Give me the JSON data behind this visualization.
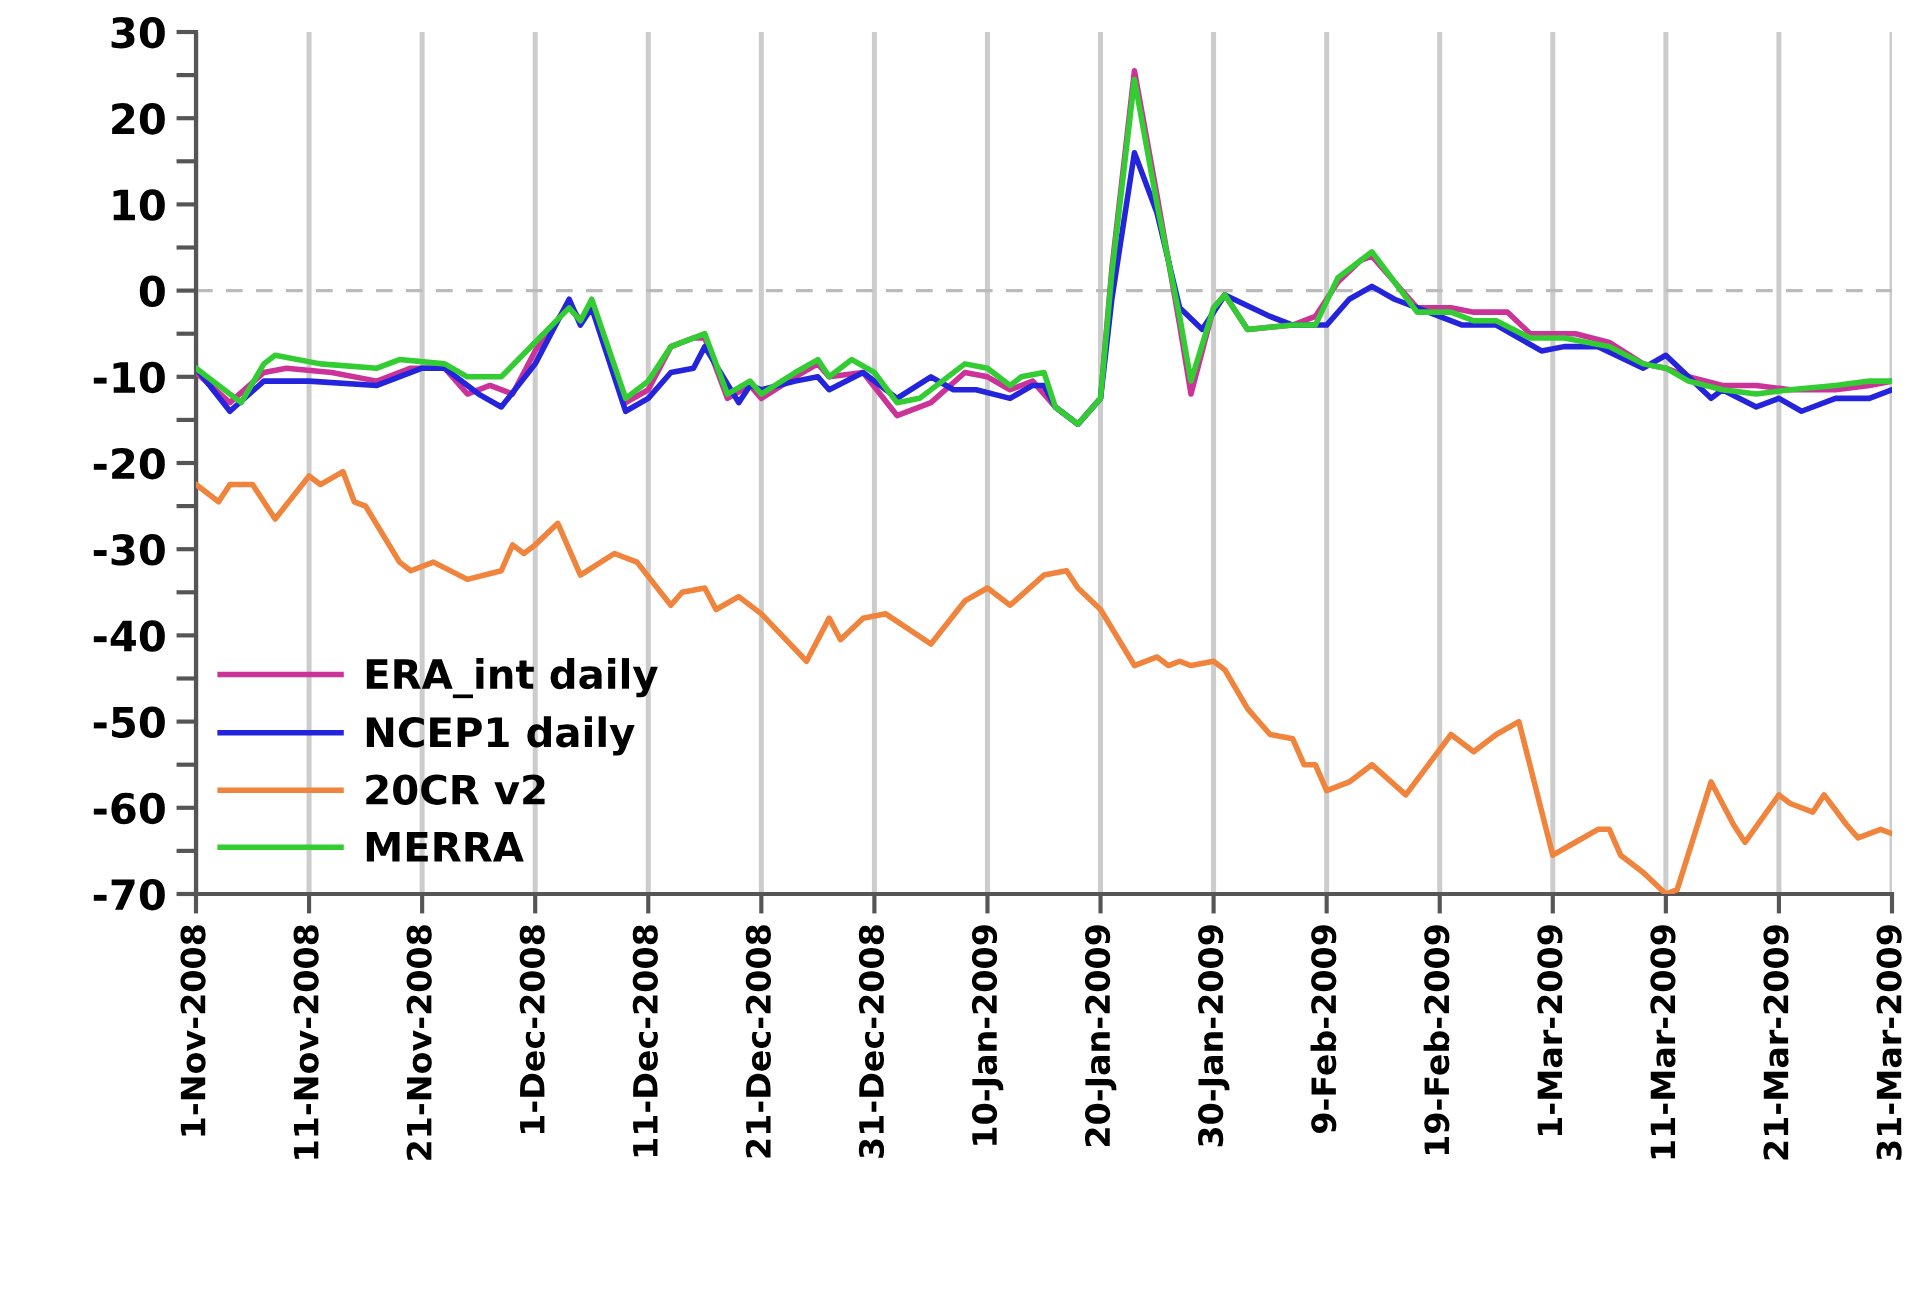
{
  "chart_data": {
    "type": "line",
    "xlim": [
      "2008-11-01",
      "2009-03-31"
    ],
    "xticks": [
      {
        "value": "2008-11-01",
        "label": "1-Nov-2008"
      },
      {
        "value": "2008-11-11",
        "label": "11-Nov-2008"
      },
      {
        "value": "2008-11-21",
        "label": "21-Nov-2008"
      },
      {
        "value": "2008-12-01",
        "label": "1-Dec-2008"
      },
      {
        "value": "2008-12-11",
        "label": "11-Dec-2008"
      },
      {
        "value": "2008-12-21",
        "label": "21-Dec-2008"
      },
      {
        "value": "2008-12-31",
        "label": "31-Dec-2008"
      },
      {
        "value": "2009-01-10",
        "label": "10-Jan-2009"
      },
      {
        "value": "2009-01-20",
        "label": "20-Jan-2009"
      },
      {
        "value": "2009-01-30",
        "label": "30-Jan-2009"
      },
      {
        "value": "2009-02-09",
        "label": "9-Feb-2009"
      },
      {
        "value": "2009-02-19",
        "label": "19-Feb-2009"
      },
      {
        "value": "2009-03-01",
        "label": "1-Mar-2009"
      },
      {
        "value": "2009-03-11",
        "label": "11-Mar-2009"
      },
      {
        "value": "2009-03-21",
        "label": "21-Mar-2009"
      },
      {
        "value": "2009-03-31",
        "label": "31-Mar-2009"
      }
    ],
    "ylim": [
      -70,
      30
    ],
    "yticks": [
      -70,
      {
        "value": -65,
        "label": null
      },
      -60,
      {
        "value": -55,
        "label": null
      },
      -50,
      {
        "value": -45,
        "label": null
      },
      -40,
      {
        "value": -35,
        "label": null
      },
      -30,
      {
        "value": -25,
        "label": null
      },
      -20,
      {
        "value": -15,
        "label": null
      },
      -10,
      {
        "value": -5,
        "label": null
      },
      0,
      {
        "value": 5,
        "label": null
      },
      10,
      {
        "value": 15,
        "label": null
      },
      20,
      {
        "value": 25,
        "label": null
      },
      30
    ],
    "grid": "x",
    "legend": "bottom left",
    "ref_lines": [
      {
        "axis": "y",
        "value": 0,
        "color": "#bbbbbb",
        "line_style": "dashed"
      }
    ],
    "series": [
      {
        "name": "ERA_int daily",
        "color": "#cc3399",
        "x": [
          "2008-11-01",
          "2008-11-04",
          "2008-11-07",
          "2008-11-09",
          "2008-11-13",
          "2008-11-17",
          "2008-11-20",
          "2008-11-23",
          "2008-11-25",
          "2008-11-27",
          "2008-11-29",
          "2008-12-01",
          "2008-12-04",
          "2008-12-05",
          "2008-12-06",
          "2008-12-09",
          "2008-12-11",
          "2008-12-13",
          "2008-12-15",
          "2008-12-16",
          "2008-12-18",
          "2008-12-20",
          "2008-12-21",
          "2008-12-24",
          "2008-12-26",
          "2008-12-27",
          "2008-12-30",
          "2009-01-02",
          "2009-01-05",
          "2009-01-08",
          "2009-01-10",
          "2009-01-12",
          "2009-01-14",
          "2009-01-16",
          "2009-01-18",
          "2009-01-20",
          "2009-01-21",
          "2009-01-23",
          "2009-01-25",
          "2009-01-27",
          "2009-01-28",
          "2009-01-30",
          "2009-01-31",
          "2009-02-02",
          "2009-02-06",
          "2009-02-08",
          "2009-02-10",
          "2009-02-12",
          "2009-02-13",
          "2009-02-15",
          "2009-02-17",
          "2009-02-20",
          "2009-02-22",
          "2009-02-25",
          "2009-02-27",
          "2009-03-03",
          "2009-03-06",
          "2009-03-09",
          "2009-03-11",
          "2009-03-13",
          "2009-03-16",
          "2009-03-19",
          "2009-03-22",
          "2009-03-26",
          "2009-03-29",
          "2009-03-31"
        ],
        "values": [
          -9.5,
          -13,
          -9.5,
          -9,
          -9.5,
          -10.5,
          -9,
          -9,
          -12,
          -11,
          -12,
          -7,
          -1.5,
          -3.5,
          -1.5,
          -13,
          -11.5,
          -6.5,
          -5.5,
          -5.5,
          -12.5,
          -11,
          -12.5,
          -10,
          -8.5,
          -10,
          -9.5,
          -14.5,
          -13,
          -9.5,
          -10,
          -11.5,
          -10.5,
          -13.5,
          -15.5,
          -12.5,
          2.5,
          25.5,
          11,
          -4,
          -12,
          -2,
          -0.5,
          -4.5,
          -4,
          -3,
          1,
          3.5,
          4,
          1,
          -2,
          -2,
          -2.5,
          -2.5,
          -5,
          -5,
          -6,
          -8.5,
          -9,
          -10,
          -11,
          -11,
          -11.5,
          -11.5,
          -11,
          -10.5
        ]
      },
      {
        "name": "NCEP1 daily",
        "color": "#2424dd",
        "x": [
          "2008-11-01",
          "2008-11-04",
          "2008-11-07",
          "2008-11-11",
          "2008-11-17",
          "2008-11-21",
          "2008-11-23",
          "2008-11-26",
          "2008-11-28",
          "2008-12-01",
          "2008-12-04",
          "2008-12-05",
          "2008-12-06",
          "2008-12-09",
          "2008-12-11",
          "2008-12-13",
          "2008-12-15",
          "2008-12-16",
          "2008-12-19",
          "2008-12-20",
          "2008-12-21",
          "2008-12-24",
          "2008-12-26",
          "2008-12-27",
          "2008-12-30",
          "2009-01-02",
          "2009-01-05",
          "2009-01-07",
          "2009-01-09",
          "2009-01-12",
          "2009-01-14",
          "2009-01-15",
          "2009-01-16",
          "2009-01-18",
          "2009-01-20",
          "2009-01-21",
          "2009-01-23",
          "2009-01-25",
          "2009-01-27",
          "2009-01-29",
          "2009-01-31",
          "2009-02-04",
          "2009-02-06",
          "2009-02-09",
          "2009-02-11",
          "2009-02-13",
          "2009-02-15",
          "2009-02-18",
          "2009-02-21",
          "2009-02-24",
          "2009-02-28",
          "2009-03-02",
          "2009-03-05",
          "2009-03-09",
          "2009-03-11",
          "2009-03-13",
          "2009-03-15",
          "2009-03-16",
          "2009-03-19",
          "2009-03-21",
          "2009-03-23",
          "2009-03-26",
          "2009-03-29",
          "2009-03-31"
        ],
        "values": [
          -9,
          -14,
          -10.5,
          -10.5,
          -11,
          -9,
          -9,
          -12,
          -13.5,
          -8.5,
          -1,
          -4,
          -2,
          -14,
          -12.5,
          -9.5,
          -9,
          -6.5,
          -13,
          -11,
          -11.5,
          -10.5,
          -10,
          -11.5,
          -9.5,
          -12.5,
          -10,
          -11.5,
          -11.5,
          -12.5,
          -11,
          -11,
          -13.5,
          -15.5,
          -12.5,
          -1,
          16,
          9,
          -2,
          -4.5,
          -0.5,
          -3,
          -4,
          -4,
          -1,
          0.5,
          -1,
          -2.5,
          -4,
          -4,
          -7,
          -6.5,
          -6.5,
          -9,
          -7.5,
          -10,
          -12.5,
          -11.5,
          -13.5,
          -12.5,
          -14,
          -12.5,
          -12.5,
          -11.5
        ]
      },
      {
        "name": "20CR v2",
        "color": "#f0843c",
        "x": [
          "2008-11-01",
          "2008-11-03",
          "2008-11-04",
          "2008-11-06",
          "2008-11-08",
          "2008-11-11",
          "2008-11-12",
          "2008-11-14",
          "2008-11-15",
          "2008-11-16",
          "2008-11-19",
          "2008-11-20",
          "2008-11-22",
          "2008-11-25",
          "2008-11-28",
          "2008-11-29",
          "2008-11-30",
          "2008-12-01",
          "2008-12-03",
          "2008-12-05",
          "2008-12-08",
          "2008-12-10",
          "2008-12-13",
          "2008-12-14",
          "2008-12-16",
          "2008-12-17",
          "2008-12-19",
          "2008-12-21",
          "2008-12-25",
          "2008-12-27",
          "2008-12-28",
          "2008-12-30",
          "2009-01-01",
          "2009-01-05",
          "2009-01-08",
          "2009-01-10",
          "2009-01-12",
          "2009-01-15",
          "2009-01-17",
          "2009-01-18",
          "2009-01-20",
          "2009-01-23",
          "2009-01-25",
          "2009-01-26",
          "2009-01-27",
          "2009-01-28",
          "2009-01-30",
          "2009-01-31",
          "2009-02-02",
          "2009-02-04",
          "2009-02-06",
          "2009-02-07",
          "2009-02-08",
          "2009-02-09",
          "2009-02-11",
          "2009-02-13",
          "2009-02-16",
          "2009-02-20",
          "2009-02-22",
          "2009-02-24",
          "2009-02-26",
          "2009-03-01",
          "2009-03-03",
          "2009-03-05",
          "2009-03-06",
          "2009-03-07",
          "2009-03-09",
          "2009-03-11",
          "2009-03-12",
          "2009-03-15",
          "2009-03-17",
          "2009-03-18",
          "2009-03-21",
          "2009-03-22",
          "2009-03-24",
          "2009-03-25",
          "2009-03-27",
          "2009-03-28",
          "2009-03-30",
          "2009-03-31"
        ],
        "values": [
          -22.5,
          -24.5,
          -22.5,
          -22.5,
          -26.5,
          -21.5,
          -22.5,
          -21,
          -24.5,
          -25,
          -31.5,
          -32.5,
          -31.5,
          -33.5,
          -32.5,
          -29.5,
          -30.5,
          -29.5,
          -27,
          -33,
          -30.5,
          -31.5,
          -36.5,
          -35,
          -34.5,
          -37,
          -35.5,
          -37.5,
          -43,
          -38,
          -40.5,
          -38,
          -37.5,
          -41,
          -36,
          -34.5,
          -36.5,
          -33,
          -32.5,
          -34.5,
          -37,
          -43.5,
          -42.5,
          -43.5,
          -43,
          -43.5,
          -43,
          -44,
          -48.5,
          -51.5,
          -52,
          -55,
          -55,
          -58,
          -57,
          -55,
          -58.5,
          -51.5,
          -53.5,
          -51.5,
          -50,
          -65.5,
          -64,
          -62.5,
          -62.5,
          -65.5,
          -67.5,
          -70,
          -69.5,
          -57,
          -62,
          -64,
          -58.5,
          -59.5,
          -60.5,
          -58.5,
          -62,
          -63.5,
          -62.5,
          -63
        ]
      },
      {
        "name": "MERRA",
        "color": "#33cc33",
        "x": [
          "2008-11-01",
          "2008-11-05",
          "2008-11-07",
          "2008-11-08",
          "2008-11-12",
          "2008-11-17",
          "2008-11-19",
          "2008-11-23",
          "2008-11-25",
          "2008-11-28",
          "2008-12-01",
          "2008-12-04",
          "2008-12-05",
          "2008-12-06",
          "2008-12-09",
          "2008-12-11",
          "2008-12-13",
          "2008-12-16",
          "2008-12-18",
          "2008-12-20",
          "2008-12-21",
          "2008-12-24",
          "2008-12-26",
          "2008-12-27",
          "2008-12-29",
          "2008-12-31",
          "2009-01-02",
          "2009-01-04",
          "2009-01-06",
          "2009-01-08",
          "2009-01-10",
          "2009-01-12",
          "2009-01-13",
          "2009-01-15",
          "2009-01-16",
          "2009-01-18",
          "2009-01-20",
          "2009-01-21",
          "2009-01-23",
          "2009-01-25",
          "2009-01-27",
          "2009-01-28",
          "2009-01-30",
          "2009-01-31",
          "2009-02-02",
          "2009-02-06",
          "2009-02-08",
          "2009-02-10",
          "2009-02-12",
          "2009-02-13",
          "2009-02-15",
          "2009-02-17",
          "2009-02-20",
          "2009-02-22",
          "2009-02-24",
          "2009-02-27",
          "2009-03-02",
          "2009-03-06",
          "2009-03-09",
          "2009-03-11",
          "2009-03-13",
          "2009-03-16",
          "2009-03-19",
          "2009-03-22",
          "2009-03-26",
          "2009-03-29",
          "2009-03-31"
        ],
        "values": [
          -9,
          -13,
          -8.5,
          -7.5,
          -8.5,
          -9,
          -8,
          -8.5,
          -10,
          -10,
          -6,
          -2,
          -3.5,
          -1,
          -12.5,
          -10.5,
          -6.5,
          -5,
          -12,
          -10.5,
          -12,
          -9.5,
          -8,
          -10,
          -8,
          -9.5,
          -13,
          -12.5,
          -10.5,
          -8.5,
          -9,
          -11,
          -10,
          -9.5,
          -13.5,
          -15.5,
          -12.5,
          2,
          24.5,
          10,
          -3,
          -10.5,
          -2,
          -0.5,
          -4.5,
          -4,
          -4,
          1.5,
          3.5,
          4.5,
          1,
          -2.5,
          -2.5,
          -3.5,
          -3.5,
          -5.5,
          -5.5,
          -6.5,
          -8.5,
          -9,
          -10.5,
          -11.5,
          -12,
          -11.5,
          -11,
          -10.5,
          -10.5
        ]
      }
    ]
  }
}
